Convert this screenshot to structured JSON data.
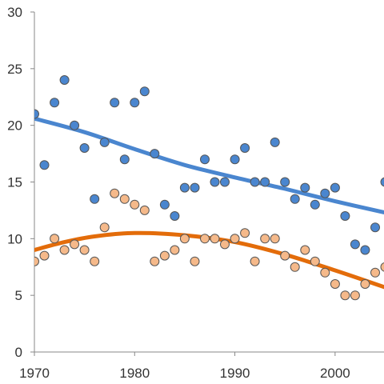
{
  "chart_data": {
    "type": "scatter",
    "title": "",
    "xlabel": "",
    "ylabel": "",
    "xlim": [
      1970,
      2005
    ],
    "ylim": [
      0,
      30
    ],
    "grid": false,
    "x_ticks": [
      1970,
      1980,
      1990,
      2000
    ],
    "y_ticks": [
      0,
      5,
      10,
      15,
      20,
      25,
      30
    ],
    "series": [
      {
        "color": "#4a86cf",
        "trend_color": "#4a86cf",
        "points": [
          [
            1970,
            21
          ],
          [
            1971,
            16.5
          ],
          [
            1972,
            22
          ],
          [
            1973,
            24
          ],
          [
            1974,
            20
          ],
          [
            1975,
            18
          ],
          [
            1976,
            13.5
          ],
          [
            1977,
            18.5
          ],
          [
            1978,
            22
          ],
          [
            1979,
            17
          ],
          [
            1980,
            22
          ],
          [
            1981,
            23
          ],
          [
            1982,
            17.5
          ],
          [
            1983,
            13
          ],
          [
            1984,
            12
          ],
          [
            1985,
            14.5
          ],
          [
            1986,
            14.5
          ],
          [
            1987,
            17
          ],
          [
            1988,
            15
          ],
          [
            1989,
            15
          ],
          [
            1990,
            17
          ],
          [
            1991,
            18
          ],
          [
            1992,
            15
          ],
          [
            1993,
            15
          ],
          [
            1994,
            18.5
          ],
          [
            1995,
            15
          ],
          [
            1996,
            13.5
          ],
          [
            1997,
            14.5
          ],
          [
            1998,
            13
          ],
          [
            1999,
            14
          ],
          [
            2000,
            14.5
          ],
          [
            2001,
            12
          ],
          [
            2002,
            9.5
          ],
          [
            2003,
            9
          ],
          [
            2004,
            11
          ],
          [
            2005,
            15
          ]
        ],
        "trend": [
          [
            1970,
            20.6
          ],
          [
            1975,
            19.4
          ],
          [
            1980,
            17.9
          ],
          [
            1985,
            16.5
          ],
          [
            1990,
            15.4
          ],
          [
            1995,
            14.4
          ],
          [
            2000,
            13.3
          ],
          [
            2005,
            12.3
          ]
        ]
      },
      {
        "color": "#f5b98a",
        "trend_color": "#e36c0a",
        "points": [
          [
            1970,
            8
          ],
          [
            1971,
            8.5
          ],
          [
            1972,
            10
          ],
          [
            1973,
            9
          ],
          [
            1974,
            9.5
          ],
          [
            1975,
            9
          ],
          [
            1976,
            8
          ],
          [
            1977,
            11
          ],
          [
            1978,
            14
          ],
          [
            1979,
            13.5
          ],
          [
            1980,
            13
          ],
          [
            1981,
            12.5
          ],
          [
            1982,
            8
          ],
          [
            1983,
            8.5
          ],
          [
            1984,
            9
          ],
          [
            1985,
            10
          ],
          [
            1986,
            8
          ],
          [
            1987,
            10
          ],
          [
            1988,
            10
          ],
          [
            1989,
            9.5
          ],
          [
            1990,
            10
          ],
          [
            1991,
            10.5
          ],
          [
            1992,
            8
          ],
          [
            1993,
            10
          ],
          [
            1994,
            10
          ],
          [
            1995,
            8.5
          ],
          [
            1996,
            7.5
          ],
          [
            1997,
            9
          ],
          [
            1998,
            8
          ],
          [
            1999,
            7
          ],
          [
            2000,
            6
          ],
          [
            2001,
            5
          ],
          [
            2002,
            5
          ],
          [
            2003,
            6
          ],
          [
            2004,
            7
          ],
          [
            2005,
            7.5
          ]
        ],
        "trend": [
          [
            1970,
            9.0
          ],
          [
            1973,
            9.7
          ],
          [
            1976,
            10.2
          ],
          [
            1980,
            10.5
          ],
          [
            1985,
            10.3
          ],
          [
            1990,
            9.7
          ],
          [
            1995,
            8.6
          ],
          [
            2000,
            7.2
          ],
          [
            2005,
            5.7
          ]
        ]
      }
    ]
  }
}
